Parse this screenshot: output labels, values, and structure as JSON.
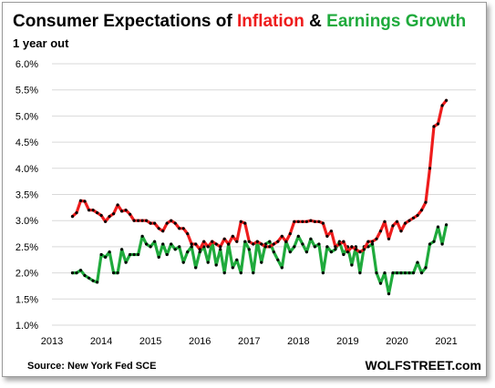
{
  "chart_data": {
    "type": "line",
    "title": {
      "part1": "Consumer Expectations of ",
      "part2": "Inflation",
      "part3": " & ",
      "part4": "Earnings Growth"
    },
    "subtitle": "1 year out",
    "source": "Source: New York Fed SCE",
    "brand": "WOLFSTREET.com",
    "colors": {
      "inflation": "#ee1c1c",
      "earnings": "#1faa3c",
      "marker": "#000000",
      "title_default": "#000000"
    },
    "x_range": [
      2013.0,
      2021.6
    ],
    "ylim": [
      1.0,
      6.0
    ],
    "y_ticks": [
      "1.0%",
      "1.5%",
      "2.0%",
      "2.5%",
      "3.0%",
      "3.5%",
      "4.0%",
      "4.5%",
      "5.0%",
      "5.5%",
      "6.0%"
    ],
    "x_ticks": [
      "2013",
      "2014",
      "2015",
      "2016",
      "2017",
      "2018",
      "2019",
      "2020",
      "2021"
    ],
    "grid": "horizontal",
    "series": [
      {
        "name": "Inflation",
        "start": "2013-06",
        "values": [
          3.08,
          3.15,
          3.38,
          3.37,
          3.2,
          3.2,
          3.15,
          3.1,
          2.98,
          3.08,
          3.13,
          3.3,
          3.18,
          3.2,
          3.12,
          3.0,
          3.0,
          3.0,
          3.0,
          2.95,
          2.95,
          2.85,
          2.8,
          2.95,
          3.0,
          2.95,
          2.85,
          2.85,
          2.75,
          2.55,
          2.55,
          2.45,
          2.6,
          2.5,
          2.6,
          2.55,
          2.5,
          2.65,
          2.55,
          2.7,
          2.6,
          2.98,
          2.95,
          2.6,
          2.55,
          2.6,
          2.55,
          2.5,
          2.5,
          2.55,
          2.6,
          2.7,
          2.6,
          2.75,
          2.98,
          2.98,
          2.98,
          2.98,
          3.0,
          2.98,
          2.98,
          2.95,
          2.7,
          2.8,
          2.5,
          2.55,
          2.6,
          2.4,
          2.5,
          2.45,
          2.4,
          2.45,
          2.6,
          2.6,
          2.65,
          2.8,
          2.98,
          2.65,
          2.9,
          2.98,
          2.8,
          2.95,
          3.0,
          3.05,
          3.1,
          3.2,
          3.35,
          4.0,
          4.8,
          4.85,
          5.2,
          5.3
        ]
      },
      {
        "name": "Earnings Growth",
        "start": "2013-06",
        "values": [
          2.0,
          2.0,
          2.05,
          1.95,
          1.9,
          1.85,
          1.82,
          2.35,
          2.3,
          2.4,
          2.0,
          2.0,
          2.45,
          2.2,
          2.35,
          2.35,
          2.35,
          2.7,
          2.55,
          2.5,
          2.6,
          2.3,
          2.55,
          2.35,
          2.55,
          2.45,
          2.5,
          2.2,
          2.4,
          2.5,
          2.1,
          2.4,
          2.5,
          2.2,
          2.6,
          2.15,
          2.45,
          2.0,
          2.55,
          2.1,
          2.25,
          2.0,
          2.6,
          2.45,
          2.0,
          2.6,
          2.2,
          2.55,
          2.6,
          2.4,
          2.25,
          2.1,
          2.6,
          2.4,
          2.5,
          2.7,
          2.55,
          2.4,
          2.65,
          2.5,
          2.55,
          2.0,
          2.5,
          2.4,
          2.45,
          2.6,
          2.35,
          2.5,
          2.15,
          2.5,
          2.0,
          2.5,
          2.5,
          2.55,
          2.0,
          1.8,
          2.0,
          1.6,
          2.0,
          2.0,
          2.0,
          2.0,
          2.0,
          2.0,
          2.2,
          2.0,
          2.1,
          2.55,
          2.6,
          2.88,
          2.55,
          2.92
        ]
      }
    ]
  }
}
